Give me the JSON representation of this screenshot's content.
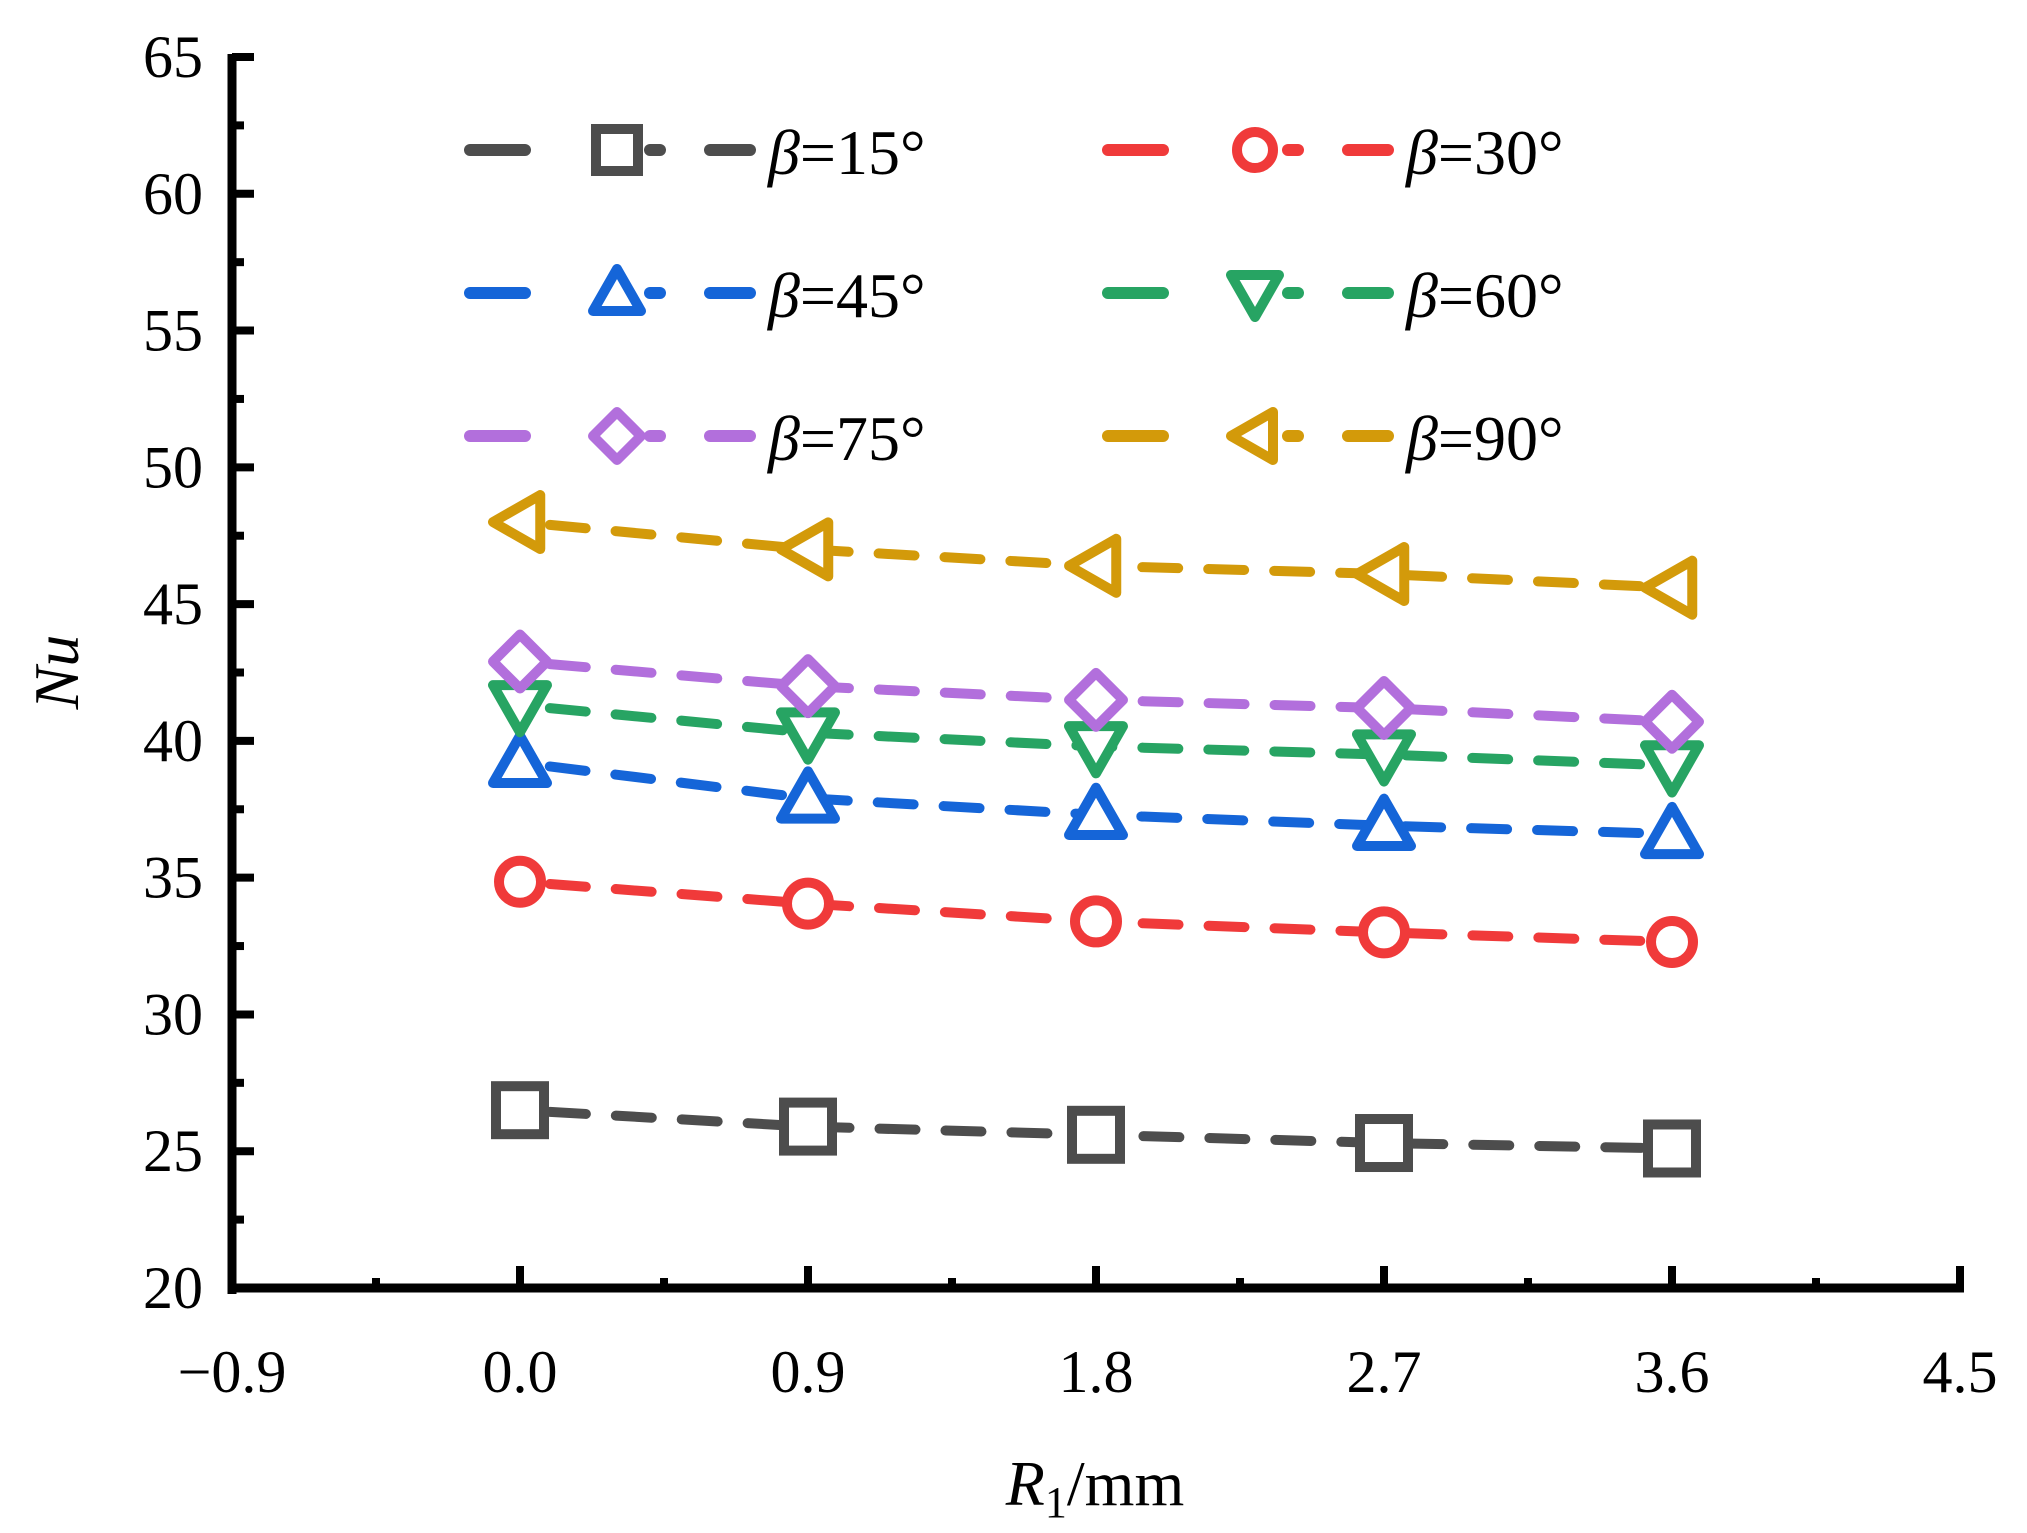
{
  "chart_data": {
    "type": "line",
    "title": "",
    "xlabel": {
      "main": "R",
      "sub": "1",
      "unit": "/mm"
    },
    "ylabel": "Nu",
    "xlim": [
      -0.9,
      4.5
    ],
    "ylim": [
      20,
      65
    ],
    "x_ticks": [
      "−0.9",
      "0.0",
      "0.9",
      "1.8",
      "2.7",
      "3.6",
      "4.5"
    ],
    "x_tick_values": [
      -0.9,
      0.0,
      0.9,
      1.8,
      2.7,
      3.6,
      4.5
    ],
    "y_ticks": [
      "20",
      "25",
      "30",
      "35",
      "40",
      "45",
      "50",
      "55",
      "60",
      "65"
    ],
    "y_tick_values": [
      20,
      25,
      30,
      35,
      40,
      45,
      50,
      55,
      60,
      65
    ],
    "grid": false,
    "legend_position": "top",
    "x": [
      0.0,
      0.9,
      1.8,
      2.7,
      3.6
    ],
    "series": [
      {
        "name": "β=15°",
        "beta": "β",
        "eq": "=15°",
        "color": "#4d4d4d",
        "marker": "square",
        "values": [
          26.5,
          25.9,
          25.6,
          25.3,
          25.1
        ]
      },
      {
        "name": "β=30°",
        "beta": "β",
        "eq": "=30°",
        "color": "#f03a3a",
        "marker": "circle",
        "values": [
          34.85,
          34.05,
          33.4,
          33.0,
          32.65
        ]
      },
      {
        "name": "β=45°",
        "beta": "β",
        "eq": "=45°",
        "color": "#1565d8",
        "marker": "triangle-up",
        "values": [
          39.2,
          37.9,
          37.3,
          36.9,
          36.6
        ]
      },
      {
        "name": "β=60°",
        "beta": "β",
        "eq": "=60°",
        "color": "#27a463",
        "marker": "triangle-down",
        "values": [
          41.3,
          40.3,
          39.8,
          39.5,
          39.1
        ]
      },
      {
        "name": "β=75°",
        "beta": "β",
        "eq": "=75°",
        "color": "#b26fdc",
        "marker": "diamond",
        "values": [
          42.9,
          42.0,
          41.5,
          41.2,
          40.7
        ]
      },
      {
        "name": "β=90°",
        "beta": "β",
        "eq": "=90°",
        "color": "#d39a0a",
        "marker": "triangle-left",
        "values": [
          48.0,
          47.0,
          46.4,
          46.1,
          45.6
        ]
      }
    ]
  }
}
